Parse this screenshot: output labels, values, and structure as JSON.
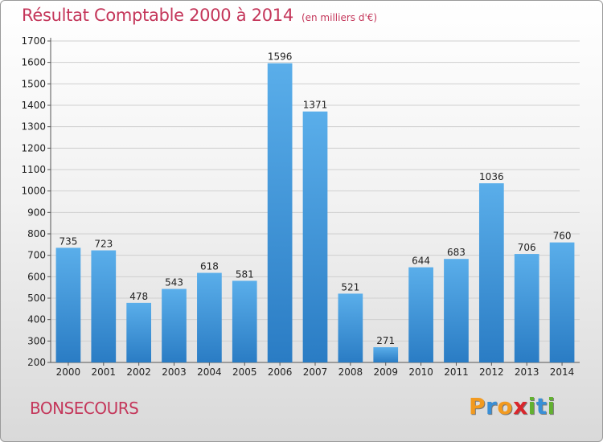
{
  "chart_data": {
    "type": "bar",
    "title": "Résultat Comptable 2000 à 2014",
    "subtitle": "(en milliers d'€)",
    "categories": [
      "2000",
      "2001",
      "2002",
      "2003",
      "2004",
      "2005",
      "2006",
      "2007",
      "2008",
      "2009",
      "2010",
      "2011",
      "2012",
      "2013",
      "2014"
    ],
    "values": [
      735,
      723,
      478,
      543,
      618,
      581,
      1596,
      1371,
      521,
      271,
      644,
      683,
      1036,
      706,
      760
    ],
    "ylim": [
      200,
      1700
    ],
    "yticks": [
      200,
      300,
      400,
      500,
      600,
      700,
      800,
      900,
      1000,
      1100,
      1200,
      1300,
      1400,
      1500,
      1600,
      1700
    ],
    "xlabel": "",
    "ylabel": "",
    "grid": true
  },
  "place_name": "BONSECOURS",
  "brand": {
    "letters": [
      "P",
      "r",
      "o",
      "x",
      "i",
      "t",
      "i"
    ]
  },
  "colors": {
    "title": "#c4365a",
    "bar_top": "#5aaeea",
    "bar_bottom": "#2a7cc4",
    "grid": "#cfcfcf",
    "logo": [
      "#f29a1f",
      "#3a8fd6",
      "#f29a1f",
      "#d9262c",
      "#62b130",
      "#3a8fd6",
      "#62b130"
    ]
  }
}
